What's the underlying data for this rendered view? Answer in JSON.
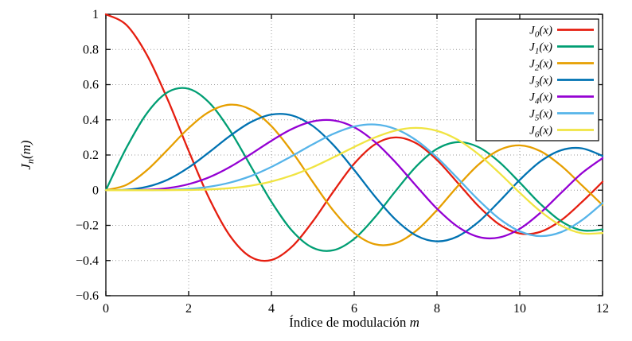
{
  "chart_data": {
    "type": "line",
    "title": "",
    "xlabel": "Índice de modulación m",
    "ylabel": "J_n(m)",
    "xlim": [
      0,
      12
    ],
    "ylim": [
      -0.6,
      1
    ],
    "xticks": [
      0,
      2,
      4,
      6,
      8,
      10,
      12
    ],
    "xtick_labels": [
      "0",
      "2",
      "4",
      "6",
      "8",
      "10",
      "12"
    ],
    "yticks": [
      -0.6,
      -0.4,
      -0.2,
      0,
      0.2,
      0.4,
      0.6,
      0.8,
      1
    ],
    "ytick_labels": [
      "−0.6",
      "−0.4",
      "−0.2",
      "0",
      "0.2",
      "0.4",
      "0.6",
      "0.8",
      "1"
    ],
    "grid": true,
    "grid_style": "dotted",
    "legend_position": "top-right",
    "x": [
      0,
      0.5,
      1,
      1.5,
      2,
      2.5,
      3,
      3.5,
      4,
      4.5,
      5,
      5.5,
      6,
      6.5,
      7,
      7.5,
      8,
      8.5,
      9,
      9.5,
      10,
      10.5,
      11,
      11.5,
      12
    ],
    "series": [
      {
        "name": "J_0(x)",
        "color": "#e51e10",
        "values": [
          1.0,
          0.9385,
          0.7652,
          0.5118,
          0.2239,
          -0.0484,
          -0.2601,
          -0.3801,
          -0.3971,
          -0.3205,
          -0.1776,
          -0.0068,
          0.1506,
          0.2601,
          0.3001,
          0.2663,
          0.1717,
          0.0419,
          -0.0903,
          -0.1939,
          -0.2459,
          -0.2366,
          -0.1712,
          -0.0677,
          0.0477
        ]
      },
      {
        "name": "J_1(x)",
        "color": "#009e73",
        "values": [
          0,
          0.2423,
          0.4401,
          0.5579,
          0.5767,
          0.4971,
          0.3391,
          0.1374,
          -0.066,
          -0.2311,
          -0.3276,
          -0.3414,
          -0.2767,
          -0.1538,
          -0.0047,
          0.1352,
          0.2346,
          0.2731,
          0.2453,
          0.1613,
          0.0435,
          -0.0789,
          -0.1768,
          -0.2284,
          -0.2234
        ]
      },
      {
        "name": "J_2(x)",
        "color": "#e69f00",
        "values": [
          0,
          0.0306,
          0.1149,
          0.2321,
          0.3528,
          0.4461,
          0.4861,
          0.4586,
          0.3641,
          0.2178,
          0.0466,
          -0.1173,
          -0.2429,
          -0.3074,
          -0.3014,
          -0.2303,
          -0.113,
          0.0224,
          0.1448,
          0.2279,
          0.2546,
          0.2216,
          0.139,
          0.028,
          -0.0849
        ]
      },
      {
        "name": "J_3(x)",
        "color": "#0072b2",
        "values": [
          0,
          0.0026,
          0.0196,
          0.0605,
          0.1289,
          0.2166,
          0.3091,
          0.3867,
          0.4302,
          0.4247,
          0.3648,
          0.2561,
          0.1148,
          -0.0353,
          -0.1676,
          -0.2581,
          -0.2911,
          -0.2626,
          -0.1809,
          -0.0653,
          0.0584,
          0.1633,
          0.2273,
          0.2381,
          0.1951
        ]
      },
      {
        "name": "J_4(x)",
        "color": "#9400d3",
        "values": [
          0,
          0.0002,
          0.0025,
          0.0118,
          0.034,
          0.0738,
          0.132,
          0.2044,
          0.2811,
          0.3484,
          0.3912,
          0.3967,
          0.3576,
          0.2748,
          0.1578,
          0.0238,
          -0.1054,
          -0.2077,
          -0.2655,
          -0.2691,
          -0.2196,
          -0.1283,
          -0.015,
          0.0963,
          0.1825
        ]
      },
      {
        "name": "J_5(x)",
        "color": "#56b4e9",
        "values": [
          0,
          0.0,
          0.0002,
          0.0018,
          0.007,
          0.0195,
          0.043,
          0.0804,
          0.1321,
          0.1947,
          0.2611,
          0.3209,
          0.3621,
          0.3736,
          0.3479,
          0.2835,
          0.1858,
          0.0671,
          -0.055,
          -0.1613,
          -0.2341,
          -0.2611,
          -0.2383,
          -0.1711,
          -0.0735
        ]
      },
      {
        "name": "J_6(x)",
        "color": "#f0e442",
        "values": [
          0,
          0.0,
          0.0,
          0.0002,
          0.0012,
          0.0042,
          0.0114,
          0.0254,
          0.0491,
          0.0843,
          0.131,
          0.1868,
          0.2458,
          0.2999,
          0.3392,
          0.3541,
          0.3376,
          0.2867,
          0.2043,
          0.0993,
          -0.0145,
          -0.1203,
          -0.2016,
          -0.2451,
          -0.2437
        ]
      }
    ],
    "style": {
      "line_width": 2.3,
      "border_color": "#000000",
      "grid_color": "#999999",
      "background": "#ffffff"
    }
  }
}
